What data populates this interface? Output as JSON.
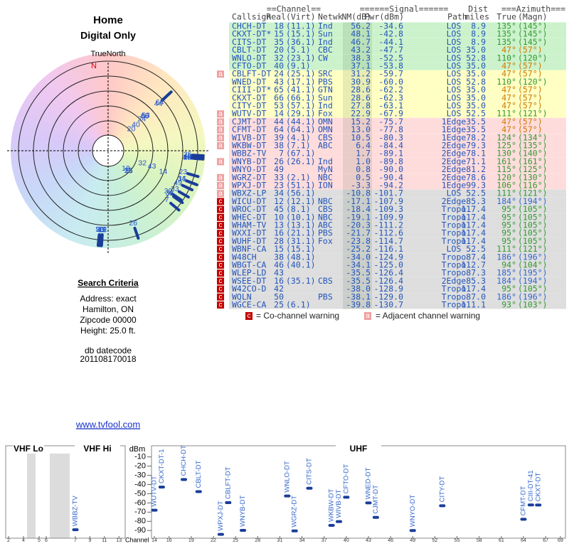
{
  "left": {
    "title": "Home",
    "subtitle": "Digital Only",
    "north_label": "TrueNorth",
    "north": "N",
    "criteria_title": "Search Criteria",
    "criteria": [
      "Address: exact",
      "Hamilton, ON",
      "Zipcode 00000",
      "Height: 25.0 ft."
    ],
    "datecode_label": "db datecode",
    "datecode": "201108170018",
    "link": "www.tvfool.com"
  },
  "table": {
    "groups": [
      "==Channel==",
      "======Signal======",
      "Dist",
      "===Azimuth==="
    ],
    "headers": [
      "Callsign",
      "Real",
      "(Virt)",
      "Netwk",
      "NM(dB)",
      "Pwr(dBm)",
      "Path",
      "miles",
      "True",
      "(Magn)"
    ],
    "rows": [
      {
        "flag": null,
        "color": "#ccf2cc",
        "az_color": "#339933",
        "cells": [
          "CHCH-DT",
          "18",
          "(11.1)",
          "Ind",
          "56.2",
          "-34.6",
          "LOS",
          "8.9",
          "135°",
          "(145°)"
        ]
      },
      {
        "flag": null,
        "color": "#ccf2cc",
        "az_color": "#339933",
        "cells": [
          "CKXT-DT*",
          "15",
          "(15.1)",
          "Sun",
          "48.1",
          "-42.8",
          "LOS",
          "8.9",
          "135°",
          "(145°)"
        ]
      },
      {
        "flag": null,
        "color": "#ccf2cc",
        "az_color": "#339933",
        "cells": [
          "CITS-DT",
          "35",
          "(36.1)",
          "Ind",
          "46.7",
          "-44.1",
          "LOS",
          "8.9",
          "135°",
          "(145°)"
        ]
      },
      {
        "flag": null,
        "color": "#ccf2cc",
        "az_color": "#cc7a00",
        "cells": [
          "CBLT-DT",
          "20",
          "(5.1)",
          "CBC",
          "43.2",
          "-47.7",
          "LOS",
          "35.0",
          "47°",
          "(57°)"
        ]
      },
      {
        "flag": null,
        "color": "#ccf2cc",
        "az_color": "#339933",
        "cells": [
          "WNLO-DT",
          "32",
          "(23.1)",
          "CW",
          "38.3",
          "-52.5",
          "LOS",
          "52.8",
          "110°",
          "(120°)"
        ]
      },
      {
        "flag": null,
        "color": "#ccf2cc",
        "az_color": "#cc7a00",
        "cells": [
          "CFTO-DT",
          "40",
          "(9.1)",
          null,
          "37.1",
          "-53.8",
          "LOS",
          "35.0",
          "47°",
          "(57°)"
        ]
      },
      {
        "flag": "a",
        "color": "#ffffc4",
        "az_color": "#cc7a00",
        "cells": [
          "CBLFT-DT",
          "24",
          "(25.1)",
          "SRC",
          "31.2",
          "-59.7",
          "LOS",
          "35.0",
          "47°",
          "(57°)"
        ]
      },
      {
        "flag": null,
        "color": "#ffffc4",
        "az_color": "#339933",
        "cells": [
          "WNED-DT",
          "43",
          "(17.1)",
          "PBS",
          "30.9",
          "-60.0",
          "LOS",
          "52.8",
          "110°",
          "(120°)"
        ]
      },
      {
        "flag": null,
        "color": "#ffffc4",
        "az_color": "#cc7a00",
        "cells": [
          "CIII-DT*",
          "65",
          "(41.1)",
          "GTN",
          "28.6",
          "-62.2",
          "LOS",
          "35.0",
          "47°",
          "(57°)"
        ]
      },
      {
        "flag": null,
        "color": "#ffffc4",
        "az_color": "#cc7a00",
        "cells": [
          "CKXT-DT",
          "66",
          "(66.1)",
          "Sun",
          "28.6",
          "-62.3",
          "LOS",
          "35.0",
          "47°",
          "(57°)"
        ]
      },
      {
        "flag": null,
        "color": "#ffffc4",
        "az_color": "#cc7a00",
        "cells": [
          "CITY-DT",
          "53",
          "(57.1)",
          "Ind",
          "27.8",
          "-63.1",
          "LOS",
          "35.0",
          "47°",
          "(57°)"
        ]
      },
      {
        "flag": "a",
        "color": "#ffffc4",
        "az_color": "#339933",
        "cells": [
          "WUTV-DT",
          "14",
          "(29.1)",
          "Fox",
          "22.9",
          "-67.9",
          "LOS",
          "52.5",
          "111°",
          "(121°)"
        ]
      },
      {
        "flag": "a",
        "color": "#ffdcdc",
        "az_color": "#cc7a00",
        "cells": [
          "CJMT-DT",
          "44",
          "(44.1)",
          "OMN",
          "15.2",
          "-75.7",
          "1Edge",
          "35.5",
          "47°",
          "(57°)"
        ]
      },
      {
        "flag": "a",
        "color": "#ffdcdc",
        "az_color": "#cc7a00",
        "cells": [
          "CFMT-DT",
          "64",
          "(64.1)",
          "OMN",
          "13.0",
          "-77.8",
          "1Edge",
          "35.5",
          "47°",
          "(57°)"
        ]
      },
      {
        "flag": "a",
        "color": "#ffdcdc",
        "az_color": "#339933",
        "cells": [
          "WIVB-DT",
          "39",
          "(4.1)",
          "CBS",
          "10.5",
          "-80.3",
          "1Edge",
          "78.2",
          "124°",
          "(134°)"
        ]
      },
      {
        "flag": "a",
        "color": "#ffdcdc",
        "az_color": "#339933",
        "cells": [
          "WKBW-DT",
          "38",
          "(7.1)",
          "ABC",
          "6.4",
          "-84.4",
          "2Edge",
          "79.3",
          "125°",
          "(135°)"
        ]
      },
      {
        "flag": null,
        "color": "#ffdcdc",
        "az_color": "#339933",
        "cells": [
          "WBBZ-TV",
          "7",
          "(67.1)",
          null,
          "1.7",
          "-89.1",
          "2Edge",
          "78.1",
          "130°",
          "(140°)"
        ]
      },
      {
        "flag": "a",
        "color": "#ffdcdc",
        "az_color": "#339933",
        "cells": [
          "WNYB-DT",
          "26",
          "(26.1)",
          "Ind",
          "1.0",
          "-89.8",
          "2Edge",
          "71.1",
          "161°",
          "(161°)"
        ]
      },
      {
        "flag": null,
        "color": "#ffdcdc",
        "az_color": "#339933",
        "cells": [
          "WNYO-DT",
          "49",
          null,
          "MyN",
          "0.8",
          "-90.0",
          "2Edge",
          "81.2",
          "115°",
          "(125°)"
        ]
      },
      {
        "flag": "a",
        "color": "#ffdcdc",
        "az_color": "#339933",
        "cells": [
          "WGRZ-DT",
          "33",
          "(2.1)",
          "NBC",
          "0.5",
          "-90.4",
          "2Edge",
          "78.6",
          "120°",
          "(130°)"
        ]
      },
      {
        "flag": "a",
        "color": "#ffdcdc",
        "az_color": "#339933",
        "cells": [
          "WPXJ-DT",
          "23",
          "(51.1)",
          "ION",
          "-3.3",
          "-94.2",
          "1Edge",
          "99.3",
          "106°",
          "(116°)"
        ]
      },
      {
        "flag": "a",
        "color": "#dedede",
        "az_color": "#339933",
        "cells": [
          "WBXZ-LP",
          "34",
          "(56.1)",
          null,
          "-10.8",
          "-101.7",
          "LOS",
          "52.5",
          "111°",
          "(121°)"
        ]
      },
      {
        "flag": "c",
        "color": "#dedede",
        "az_color": "#3366cc",
        "cells": [
          "WICU-DT",
          "12",
          "(12.1)",
          "NBC",
          "-17.1",
          "-107.9",
          "2Edge",
          "85.3",
          "184°",
          "(194°)"
        ]
      },
      {
        "flag": "c",
        "color": "#dedede",
        "az_color": "#339933",
        "cells": [
          "WROC-DT",
          "45",
          "(8.1)",
          "CBS",
          "-18.4",
          "-109.3",
          "Tropo",
          "117.4",
          "95°",
          "(105°)"
        ]
      },
      {
        "flag": "c",
        "color": "#dedede",
        "az_color": "#339933",
        "cells": [
          "WHEC-DT",
          "10",
          "(10.1)",
          "NBC",
          "-19.1",
          "-109.9",
          "Tropo",
          "117.4",
          "95°",
          "(105°)"
        ]
      },
      {
        "flag": "c",
        "color": "#dedede",
        "az_color": "#339933",
        "cells": [
          "WHAM-TV",
          "13",
          "(13.1)",
          "ABC",
          "-20.3",
          "-111.2",
          "Tropo",
          "117.4",
          "95°",
          "(105°)"
        ]
      },
      {
        "flag": "c",
        "color": "#dedede",
        "az_color": "#339933",
        "cells": [
          "WXXI-DT",
          "16",
          "(21.1)",
          "PBS",
          "-21.7",
          "-112.6",
          "Tropo",
          "117.4",
          "95°",
          "(105°)"
        ]
      },
      {
        "flag": "c",
        "color": "#dedede",
        "az_color": "#339933",
        "cells": [
          "WUHF-DT",
          "28",
          "(31.1)",
          "Fox",
          "-23.8",
          "-114.7",
          "Tropo",
          "117.4",
          "95°",
          "(105°)"
        ]
      },
      {
        "flag": "c",
        "color": "#dedede",
        "az_color": "#339933",
        "cells": [
          "WBNF-CA",
          "15",
          "(15.1)",
          null,
          "-25.2",
          "-116.1",
          "LOS",
          "52.5",
          "111°",
          "(121°)"
        ]
      },
      {
        "flag": "c",
        "color": "#dedede",
        "az_color": "#3366cc",
        "cells": [
          "W48CH",
          "38",
          "(48.1)",
          null,
          "-34.0",
          "-124.9",
          "Tropo",
          "87.4",
          "186°",
          "(196°)"
        ]
      },
      {
        "flag": "c",
        "color": "#dedede",
        "az_color": "#339933",
        "cells": [
          "WBGT-CA",
          "46",
          "(40.1)",
          null,
          "-34.1",
          "-125.0",
          "Tropo",
          "112.7",
          "94°",
          "(104°)"
        ]
      },
      {
        "flag": "c",
        "color": "#dedede",
        "az_color": "#3366cc",
        "cells": [
          "WLEP-LD",
          "43",
          null,
          null,
          "-35.5",
          "-126.4",
          "Tropo",
          "87.3",
          "185°",
          "(195°)"
        ]
      },
      {
        "flag": "c",
        "color": "#dedede",
        "az_color": "#3366cc",
        "cells": [
          "WSEE-DT",
          "16",
          "(35.1)",
          "CBS",
          "-35.5",
          "-126.4",
          "2Edge",
          "85.3",
          "184°",
          "(194°)"
        ]
      },
      {
        "flag": "c",
        "color": "#dedede",
        "az_color": "#339933",
        "cells": [
          "W42CO-D",
          "42",
          null,
          null,
          "-38.0",
          "-128.9",
          "Tropo",
          "117.4",
          "95°",
          "(105°)"
        ]
      },
      {
        "flag": "c",
        "color": "#dedede",
        "az_color": "#3366cc",
        "cells": [
          "WQLN",
          "50",
          null,
          "PBS",
          "-38.1",
          "-129.0",
          "Tropo",
          "87.0",
          "186°",
          "(196°)"
        ]
      },
      {
        "flag": "c",
        "color": "#dedede",
        "az_color": "#339933",
        "cells": [
          "WGCE-CA",
          "25",
          "(6.1)",
          null,
          "-39.8",
          "-130.7",
          "Tropo",
          "111.1",
          "93°",
          "(103°)"
        ]
      }
    ],
    "legend": [
      {
        "flag": "c",
        "text": "= Co-channel warning"
      },
      {
        "flag": "a",
        "text": "= Adjacent channel warning"
      }
    ]
  },
  "spectrum": {
    "type": "scatter",
    "ylabel": "dBm",
    "xlabel": "Channel",
    "ylim": [
      -96,
      -1
    ],
    "yticks": [
      -10,
      -20,
      -30,
      -40,
      -50,
      -60,
      -70,
      -80,
      -90
    ],
    "bands": [
      {
        "name": "VHF Lo",
        "xticks": [
          2,
          4,
          5,
          6
        ]
      },
      {
        "name": "VHF Hi",
        "xticks": [
          7,
          9,
          11,
          13
        ]
      },
      {
        "name": "UHF",
        "xticks": [
          14,
          16,
          19,
          22,
          25,
          28,
          31,
          34,
          37,
          40,
          43,
          46,
          49,
          52,
          55,
          58,
          61,
          64,
          67,
          69
        ]
      }
    ],
    "color": "#1a3d99",
    "label_color": "#3366cc",
    "stations": [
      {
        "name": "WBBZ-TV",
        "channel": 7,
        "dbm": -89.1
      },
      {
        "name": "WUTV-DT",
        "channel": 14,
        "dbm": -67.9
      },
      {
        "name": "CKXT-DT-1",
        "channel": 15,
        "dbm": -42.8
      },
      {
        "name": "CHCH-DT",
        "channel": 18,
        "dbm": -34.6
      },
      {
        "name": "CBLT-DT",
        "channel": 20,
        "dbm": -47.7
      },
      {
        "name": "WPXJ-DT",
        "channel": 23,
        "dbm": -94.2
      },
      {
        "name": "CBLFT-DT",
        "channel": 24,
        "dbm": -59.7
      },
      {
        "name": "WNYB-DT",
        "channel": 26,
        "dbm": -89.8
      },
      {
        "name": "WNLO-DT",
        "channel": 32,
        "dbm": -52.5
      },
      {
        "name": "WGRZ-DT",
        "channel": 33,
        "dbm": -90.4
      },
      {
        "name": "CITS-DT",
        "channel": 35,
        "dbm": -44.1
      },
      {
        "name": "WKBW-DT",
        "channel": 38,
        "dbm": -84.4
      },
      {
        "name": "WIVB-DT",
        "channel": 39,
        "dbm": -80.3
      },
      {
        "name": "CFTO-DT",
        "channel": 40,
        "dbm": -53.8
      },
      {
        "name": "WNED-DT",
        "channel": 43,
        "dbm": -60.0
      },
      {
        "name": "CJMT-DT",
        "channel": 44,
        "dbm": -75.7
      },
      {
        "name": "WNYO-DT",
        "channel": 49,
        "dbm": -90.0
      },
      {
        "name": "CITY-DT",
        "channel": 53,
        "dbm": -63.1
      },
      {
        "name": "CFMT-DT",
        "channel": 64,
        "dbm": -77.8
      },
      {
        "name": "CIII-DT-41",
        "channel": 65,
        "dbm": -62.2
      },
      {
        "name": "CKXT-DT",
        "channel": 66,
        "dbm": -62.3
      }
    ]
  }
}
